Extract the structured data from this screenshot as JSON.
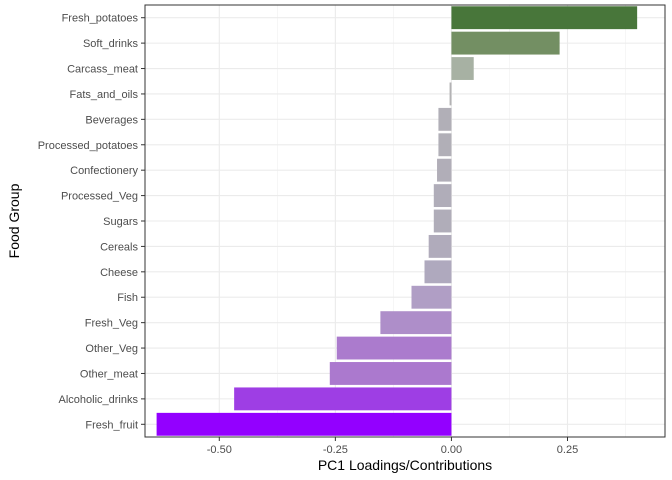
{
  "chart_data": {
    "type": "bar",
    "orientation": "horizontal",
    "xlabel": "PC1 Loadings/Contributions",
    "ylabel": "Food Group",
    "xlim": [
      -0.66,
      0.46
    ],
    "x_ticks": [
      -0.5,
      -0.25,
      0,
      0.25
    ],
    "x_tick_labels": [
      "-0.50",
      "-0.25",
      "0.00",
      "0.25"
    ],
    "grid": true,
    "legend": "none",
    "categories": [
      "Fresh_potatoes",
      "Soft_drinks",
      "Carcass_meat",
      "Fats_and_oils",
      "Beverages",
      "Processed_potatoes",
      "Confectionery",
      "Processed_Veg",
      "Sugars",
      "Cereals",
      "Cheese",
      "Fish",
      "Fresh_Veg",
      "Other_Veg",
      "Other_meat",
      "Alcoholic_drinks",
      "Fresh_fruit"
    ],
    "values": [
      0.4,
      0.233,
      0.048,
      -0.004,
      -0.028,
      -0.028,
      -0.031,
      -0.038,
      -0.038,
      -0.049,
      -0.058,
      -0.086,
      -0.153,
      -0.247,
      -0.262,
      -0.468,
      -0.635
    ],
    "colors": [
      "#48763a",
      "#738f63",
      "#a7b1a3",
      "#b3b2b4",
      "#b1afb7",
      "#b1afb7",
      "#b1aeb8",
      "#b0adb9",
      "#b0adb9",
      "#b0abbb",
      "#afa9be",
      "#b09ec5",
      "#ae8ec9",
      "#ab7bcd",
      "#ab79ce",
      "#9e3ee4",
      "#9300ff"
    ]
  }
}
